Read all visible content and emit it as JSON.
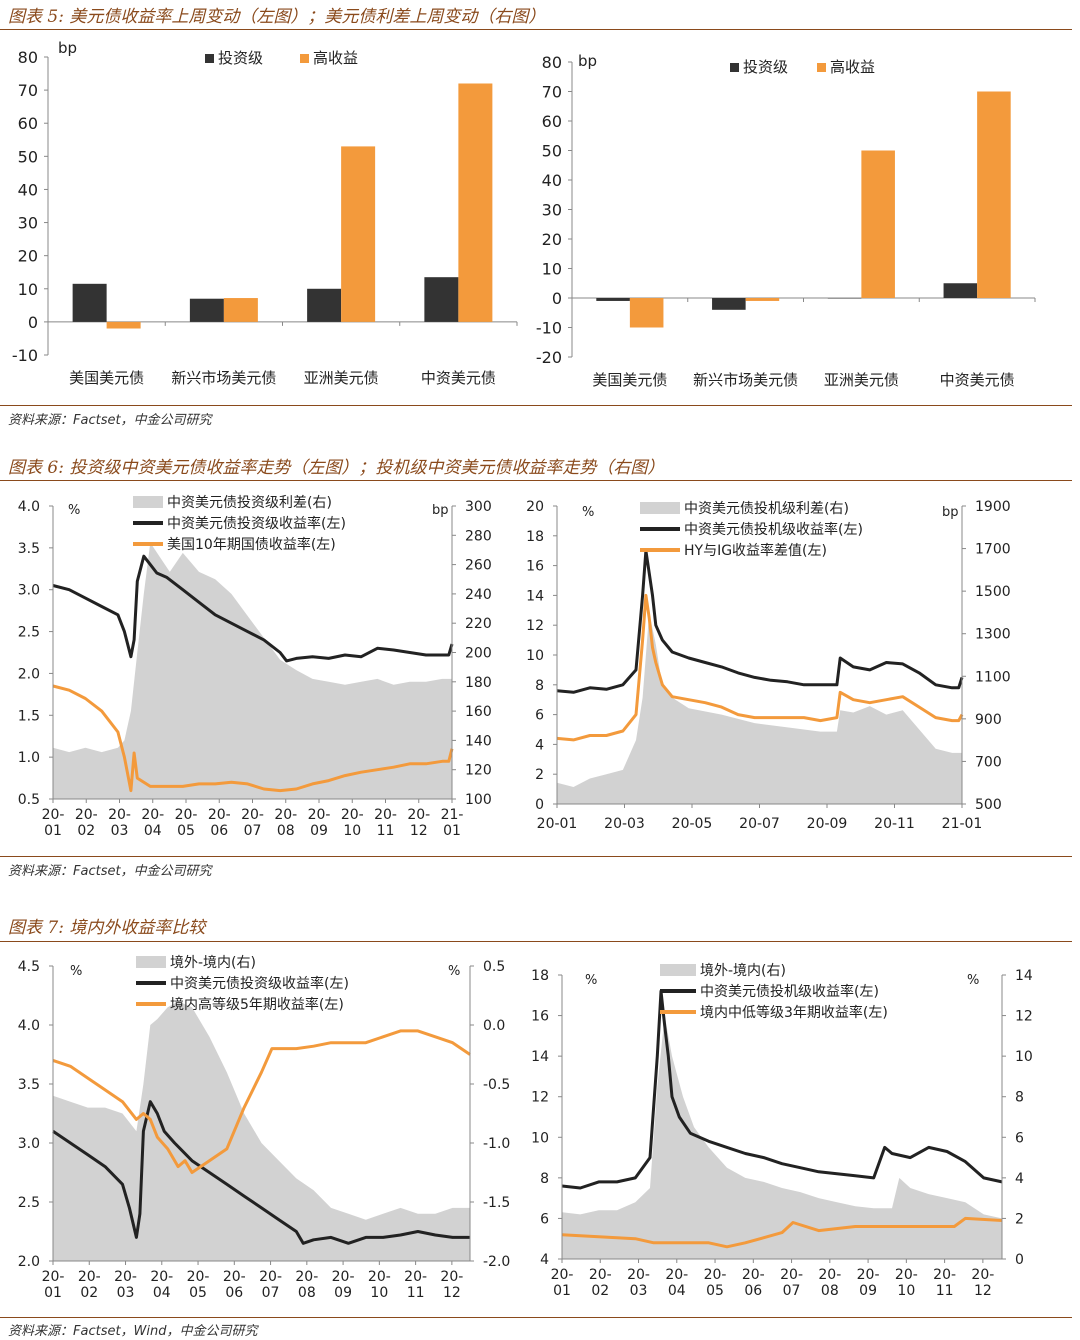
{
  "sections": [
    {
      "title": "图表 5:  美元债收益率上周变动（左图）；美元债利差上周变动（右图）",
      "source": "资料来源：Factset，中金公司研究"
    },
    {
      "title": "图表 6:  投资级中资美元债收益率走势（左图）；投机级中资美元债收益率走势（右图）",
      "source": "资料来源：Factset，中金公司研究"
    },
    {
      "title": "图表 7:  境内外收益率比较",
      "source": "资料来源：Factset，Wind，中金公司研究"
    }
  ],
  "chart_data": [
    {
      "id": "c5l",
      "type": "bar",
      "unit": "bp",
      "categories": [
        "美国美元债",
        "新兴市场美元债",
        "亚洲美元债",
        "中资美元债"
      ],
      "series": [
        {
          "name": "投资级",
          "color": "#333333",
          "values": [
            11.5,
            7,
            10,
            13.5
          ]
        },
        {
          "name": "高收益",
          "color": "#f39a3c",
          "values": [
            -2,
            7.2,
            53,
            72
          ]
        }
      ],
      "ylim": [
        -10,
        80
      ],
      "yticks": [
        -10,
        0,
        10,
        20,
        30,
        40,
        50,
        60,
        70,
        80
      ]
    },
    {
      "id": "c5r",
      "type": "bar",
      "unit": "bp",
      "categories": [
        "美国美元债",
        "新兴市场美元债",
        "亚洲美元债",
        "中资美元债"
      ],
      "series": [
        {
          "name": "投资级",
          "color": "#333333",
          "values": [
            -1,
            -4,
            0,
            5
          ]
        },
        {
          "name": "高收益",
          "color": "#f39a3c",
          "values": [
            -10,
            -1,
            50,
            70
          ]
        }
      ],
      "ylim": [
        -20,
        80
      ],
      "yticks": [
        -20,
        -10,
        0,
        10,
        20,
        30,
        40,
        50,
        60,
        70,
        80
      ]
    },
    {
      "id": "c6l",
      "type": "line",
      "left_unit": "%",
      "right_unit": "bp",
      "ylim_left": [
        0.5,
        4.0
      ],
      "yticks_left": [
        0.5,
        1.0,
        1.5,
        2.0,
        2.5,
        3.0,
        3.5,
        4.0
      ],
      "ylim_right": [
        100,
        300
      ],
      "yticks_right": [
        100,
        120,
        140,
        160,
        180,
        200,
        220,
        240,
        260,
        280,
        300
      ],
      "xlim": [
        0,
        12.3
      ],
      "xticks": [
        "20-01",
        "20-02",
        "20-03",
        "20-04",
        "20-05",
        "20-06",
        "20-07",
        "20-08",
        "20-09",
        "20-10",
        "20-11",
        "20-12",
        "21-01"
      ],
      "area": {
        "name": "中资美元债投资级利差(右)",
        "axis": "right",
        "color": "#d2d2d2",
        "x": [
          0,
          0.5,
          1,
          1.5,
          2,
          2.2,
          2.4,
          2.6,
          2.8,
          3.0,
          3.3,
          3.6,
          4.0,
          4.5,
          5.0,
          5.5,
          6.0,
          6.5,
          7.0,
          7.5,
          8.0,
          8.5,
          9.0,
          9.5,
          10.0,
          10.5,
          11.0,
          11.5,
          12.0,
          12.3
        ],
        "y": [
          135,
          132,
          135,
          132,
          135,
          140,
          160,
          200,
          240,
          275,
          265,
          255,
          268,
          255,
          250,
          240,
          225,
          210,
          195,
          188,
          182,
          180,
          178,
          180,
          182,
          178,
          180,
          180,
          182,
          182
        ]
      },
      "series": [
        {
          "name": "中资美元债投资级收益率(左)",
          "axis": "left",
          "color": "#222222",
          "width": 3,
          "x": [
            0,
            0.5,
            1,
            1.5,
            2,
            2.2,
            2.4,
            2.5,
            2.6,
            2.8,
            3.0,
            3.2,
            3.5,
            4.0,
            4.5,
            5.0,
            5.5,
            6.0,
            6.5,
            7.0,
            7.2,
            7.5,
            8.0,
            8.5,
            9.0,
            9.5,
            10.0,
            10.5,
            11.0,
            11.5,
            12.0,
            12.2,
            12.3
          ],
          "y": [
            3.05,
            3.0,
            2.9,
            2.8,
            2.7,
            2.5,
            2.2,
            2.4,
            3.1,
            3.4,
            3.3,
            3.2,
            3.15,
            3.0,
            2.85,
            2.7,
            2.6,
            2.5,
            2.4,
            2.25,
            2.15,
            2.18,
            2.2,
            2.18,
            2.22,
            2.2,
            2.3,
            2.28,
            2.25,
            2.22,
            2.22,
            2.22,
            2.35
          ]
        },
        {
          "name": "美国10年期国债收益率(左)",
          "axis": "left",
          "color": "#f39a3c",
          "width": 3,
          "x": [
            0,
            0.5,
            1,
            1.5,
            2,
            2.2,
            2.4,
            2.5,
            2.6,
            2.8,
            3.0,
            3.5,
            4.0,
            4.5,
            5.0,
            5.5,
            6.0,
            6.5,
            7.0,
            7.5,
            8.0,
            8.5,
            9.0,
            9.5,
            10.0,
            10.5,
            11.0,
            11.5,
            12.0,
            12.2,
            12.3
          ],
          "y": [
            1.85,
            1.8,
            1.7,
            1.55,
            1.3,
            1.0,
            0.6,
            1.05,
            0.75,
            0.7,
            0.65,
            0.65,
            0.65,
            0.68,
            0.68,
            0.7,
            0.68,
            0.62,
            0.6,
            0.62,
            0.68,
            0.72,
            0.78,
            0.82,
            0.85,
            0.88,
            0.92,
            0.92,
            0.95,
            0.95,
            1.1
          ]
        }
      ]
    },
    {
      "id": "c6r",
      "type": "line",
      "left_unit": "%",
      "right_unit": "bp",
      "ylim_left": [
        0,
        20
      ],
      "yticks_left": [
        0,
        2,
        4,
        6,
        8,
        10,
        12,
        14,
        16,
        18,
        20
      ],
      "ylim_right": [
        500,
        1900
      ],
      "yticks_right": [
        500,
        700,
        900,
        1100,
        1300,
        1500,
        1700,
        1900
      ],
      "xlim": [
        0,
        12.3
      ],
      "xticks": [
        "20-01",
        "20-03",
        "20-05",
        "20-07",
        "20-09",
        "20-11",
        "21-01"
      ],
      "area": {
        "name": "中资美元债投机级利差(右)",
        "axis": "right",
        "color": "#d2d2d2",
        "x": [
          0,
          0.5,
          1,
          1.5,
          2,
          2.4,
          2.6,
          2.8,
          3.0,
          3.2,
          3.5,
          4.0,
          5.0,
          6.0,
          7.0,
          8.0,
          8.5,
          8.6,
          9.0,
          9.5,
          10.0,
          10.5,
          11.0,
          11.5,
          12.0,
          12.3
        ],
        "y": [
          600,
          580,
          620,
          640,
          660,
          800,
          1000,
          1400,
          1250,
          1050,
          1000,
          950,
          920,
          880,
          860,
          840,
          840,
          940,
          930,
          960,
          920,
          940,
          850,
          760,
          740,
          740
        ]
      },
      "series": [
        {
          "name": "中资美元债投机级收益率(左)",
          "axis": "left",
          "color": "#222222",
          "width": 3,
          "x": [
            0,
            0.5,
            1,
            1.5,
            2,
            2.4,
            2.6,
            2.7,
            2.8,
            2.9,
            3.0,
            3.2,
            3.5,
            4.0,
            4.5,
            5.0,
            5.5,
            6.0,
            6.5,
            7.0,
            7.5,
            8.0,
            8.5,
            8.6,
            9.0,
            9.5,
            10.0,
            10.5,
            11.0,
            11.5,
            12.0,
            12.2,
            12.3
          ],
          "y": [
            7.6,
            7.5,
            7.8,
            7.7,
            8.0,
            9.0,
            14.0,
            17.0,
            15.5,
            14.0,
            12.0,
            11.0,
            10.2,
            9.8,
            9.5,
            9.2,
            8.8,
            8.5,
            8.3,
            8.2,
            8.0,
            8.0,
            8.0,
            9.8,
            9.2,
            9.0,
            9.5,
            9.4,
            8.8,
            8.0,
            7.8,
            7.8,
            8.5
          ]
        },
        {
          "name": "HY与IG收益率差值(左)",
          "axis": "left",
          "color": "#f39a3c",
          "width": 3,
          "x": [
            0,
            0.5,
            1,
            1.5,
            2,
            2.4,
            2.6,
            2.7,
            2.8,
            2.9,
            3.0,
            3.2,
            3.5,
            4.0,
            4.5,
            5.0,
            5.5,
            6.0,
            6.5,
            7.0,
            7.5,
            8.0,
            8.5,
            8.6,
            9.0,
            9.5,
            10.0,
            10.5,
            11.0,
            11.5,
            12.0,
            12.2,
            12.3
          ],
          "y": [
            4.4,
            4.3,
            4.6,
            4.6,
            4.9,
            6.0,
            11.0,
            14.0,
            12.5,
            10.5,
            9.5,
            8.0,
            7.2,
            7.0,
            6.8,
            6.5,
            6.0,
            5.8,
            5.8,
            5.8,
            5.8,
            5.6,
            5.8,
            7.5,
            7.0,
            6.8,
            7.0,
            7.2,
            6.5,
            5.8,
            5.6,
            5.6,
            6.0
          ]
        }
      ]
    },
    {
      "id": "c7l",
      "type": "line",
      "left_unit": "%",
      "right_unit": "%",
      "ylim_left": [
        2.0,
        4.5
      ],
      "yticks_left": [
        2.0,
        2.5,
        3.0,
        3.5,
        4.0,
        4.5
      ],
      "ylim_right": [
        -2.0,
        0.5
      ],
      "yticks_right": [
        -2.0,
        -1.5,
        -1.0,
        -0.5,
        0.0,
        0.5
      ],
      "xlim": [
        0,
        12
      ],
      "xticks": [
        "20-01",
        "20-02",
        "20-03",
        "20-04",
        "20-05",
        "20-06",
        "20-07",
        "20-08",
        "20-09",
        "20-10",
        "20-11",
        "20-12"
      ],
      "area": {
        "name": "境外-境内(右)",
        "axis": "right",
        "color": "#d2d2d2",
        "x": [
          0,
          0.5,
          1,
          1.5,
          2,
          2.4,
          2.6,
          2.8,
          3.0,
          3.3,
          3.6,
          4.0,
          4.5,
          5.0,
          5.5,
          6.0,
          6.5,
          7.0,
          7.5,
          8.0,
          8.5,
          9.0,
          9.5,
          10.0,
          10.5,
          11.0,
          11.5,
          12.0
        ],
        "y": [
          -0.6,
          -0.65,
          -0.7,
          -0.7,
          -0.75,
          -0.9,
          -0.5,
          0.0,
          0.05,
          0.15,
          0.2,
          0.15,
          -0.1,
          -0.4,
          -0.75,
          -1.0,
          -1.15,
          -1.3,
          -1.4,
          -1.55,
          -1.6,
          -1.65,
          -1.6,
          -1.55,
          -1.6,
          -1.6,
          -1.55,
          -1.55
        ]
      },
      "series": [
        {
          "name": "中资美元债投资级收益率(左)",
          "axis": "left",
          "color": "#222222",
          "width": 3,
          "x": [
            0,
            0.5,
            1,
            1.5,
            2,
            2.2,
            2.4,
            2.5,
            2.6,
            2.8,
            3.0,
            3.2,
            3.5,
            4.0,
            4.5,
            5.0,
            5.5,
            6.0,
            6.5,
            7.0,
            7.2,
            7.5,
            8.0,
            8.5,
            9.0,
            9.5,
            10.0,
            10.5,
            11.0,
            11.5,
            12.0
          ],
          "y": [
            3.1,
            3.0,
            2.9,
            2.8,
            2.65,
            2.45,
            2.2,
            2.4,
            3.1,
            3.35,
            3.25,
            3.1,
            3.0,
            2.85,
            2.75,
            2.65,
            2.55,
            2.45,
            2.35,
            2.25,
            2.15,
            2.18,
            2.2,
            2.15,
            2.2,
            2.2,
            2.22,
            2.25,
            2.22,
            2.2,
            2.2
          ]
        },
        {
          "name": "境内高等级5年期收益率(左)",
          "axis": "left",
          "color": "#f39a3c",
          "width": 3,
          "x": [
            0,
            0.5,
            1,
            1.5,
            2,
            2.4,
            2.6,
            2.8,
            3.0,
            3.3,
            3.6,
            3.8,
            4.0,
            4.5,
            5.0,
            5.5,
            6.0,
            6.3,
            6.6,
            7.0,
            7.5,
            8.0,
            8.5,
            9.0,
            9.5,
            10.0,
            10.5,
            11.0,
            11.5,
            12.0
          ],
          "y": [
            3.7,
            3.65,
            3.55,
            3.45,
            3.35,
            3.2,
            3.25,
            3.2,
            3.05,
            2.95,
            2.8,
            2.85,
            2.75,
            2.85,
            2.95,
            3.3,
            3.6,
            3.8,
            3.8,
            3.8,
            3.82,
            3.85,
            3.85,
            3.85,
            3.9,
            3.95,
            3.95,
            3.9,
            3.85,
            3.75
          ]
        }
      ]
    },
    {
      "id": "c7r",
      "type": "line",
      "left_unit": "%",
      "right_unit": "%",
      "ylim_left": [
        4,
        18
      ],
      "yticks_left": [
        4,
        6,
        8,
        10,
        12,
        14,
        16,
        18
      ],
      "ylim_right": [
        0,
        14
      ],
      "yticks_right": [
        0,
        2,
        4,
        6,
        8,
        10,
        12,
        14
      ],
      "xlim": [
        0,
        12
      ],
      "xticks": [
        "20-01",
        "20-02",
        "20-03",
        "20-04",
        "20-05",
        "20-06",
        "20-07",
        "20-08",
        "20-09",
        "20-10",
        "20-11",
        "20-12"
      ],
      "area": {
        "name": "境外-境内(右)",
        "axis": "right",
        "color": "#d2d2d2",
        "x": [
          0,
          0.5,
          1,
          1.5,
          2,
          2.4,
          2.6,
          2.8,
          3.0,
          3.3,
          3.6,
          4.0,
          4.5,
          5.0,
          5.5,
          6.0,
          6.5,
          7.0,
          7.5,
          8.0,
          8.5,
          9.0,
          9.2,
          9.5,
          10.0,
          10.5,
          11.0,
          11.5,
          12.0
        ],
        "y": [
          2.3,
          2.2,
          2.4,
          2.4,
          2.8,
          3.5,
          8.5,
          12.0,
          10.0,
          8.0,
          6.5,
          5.5,
          4.5,
          4.0,
          3.8,
          3.5,
          3.3,
          3.0,
          2.8,
          2.6,
          2.5,
          2.5,
          4.0,
          3.5,
          3.2,
          3.0,
          2.8,
          2.2,
          2.0
        ]
      },
      "series": [
        {
          "name": "中资美元债投机级收益率(左)",
          "axis": "left",
          "color": "#222222",
          "width": 3,
          "x": [
            0,
            0.5,
            1,
            1.5,
            2,
            2.4,
            2.6,
            2.7,
            2.8,
            2.9,
            3.0,
            3.2,
            3.5,
            4.0,
            4.5,
            5.0,
            5.5,
            6.0,
            6.5,
            7.0,
            7.5,
            8.0,
            8.5,
            8.8,
            9.0,
            9.5,
            10.0,
            10.5,
            11.0,
            11.5,
            12.0
          ],
          "y": [
            7.6,
            7.5,
            7.8,
            7.8,
            8.0,
            9.0,
            14.0,
            17.2,
            15.5,
            14.0,
            12.0,
            11.0,
            10.2,
            9.8,
            9.5,
            9.2,
            9.0,
            8.7,
            8.5,
            8.3,
            8.2,
            8.1,
            8.0,
            9.5,
            9.2,
            9.0,
            9.5,
            9.3,
            8.8,
            8.0,
            7.8
          ]
        },
        {
          "name": "境内中低等级3年期收益率(左)",
          "axis": "left",
          "color": "#f39a3c",
          "width": 3,
          "x": [
            0,
            1,
            2,
            2.5,
            3,
            4,
            4.5,
            5,
            6,
            6.3,
            7,
            8,
            9,
            10,
            10.7,
            11,
            12
          ],
          "y": [
            5.2,
            5.1,
            5.0,
            4.8,
            4.8,
            4.8,
            4.6,
            4.8,
            5.3,
            5.8,
            5.4,
            5.6,
            5.6,
            5.6,
            5.6,
            6.0,
            5.9
          ]
        }
      ]
    }
  ]
}
